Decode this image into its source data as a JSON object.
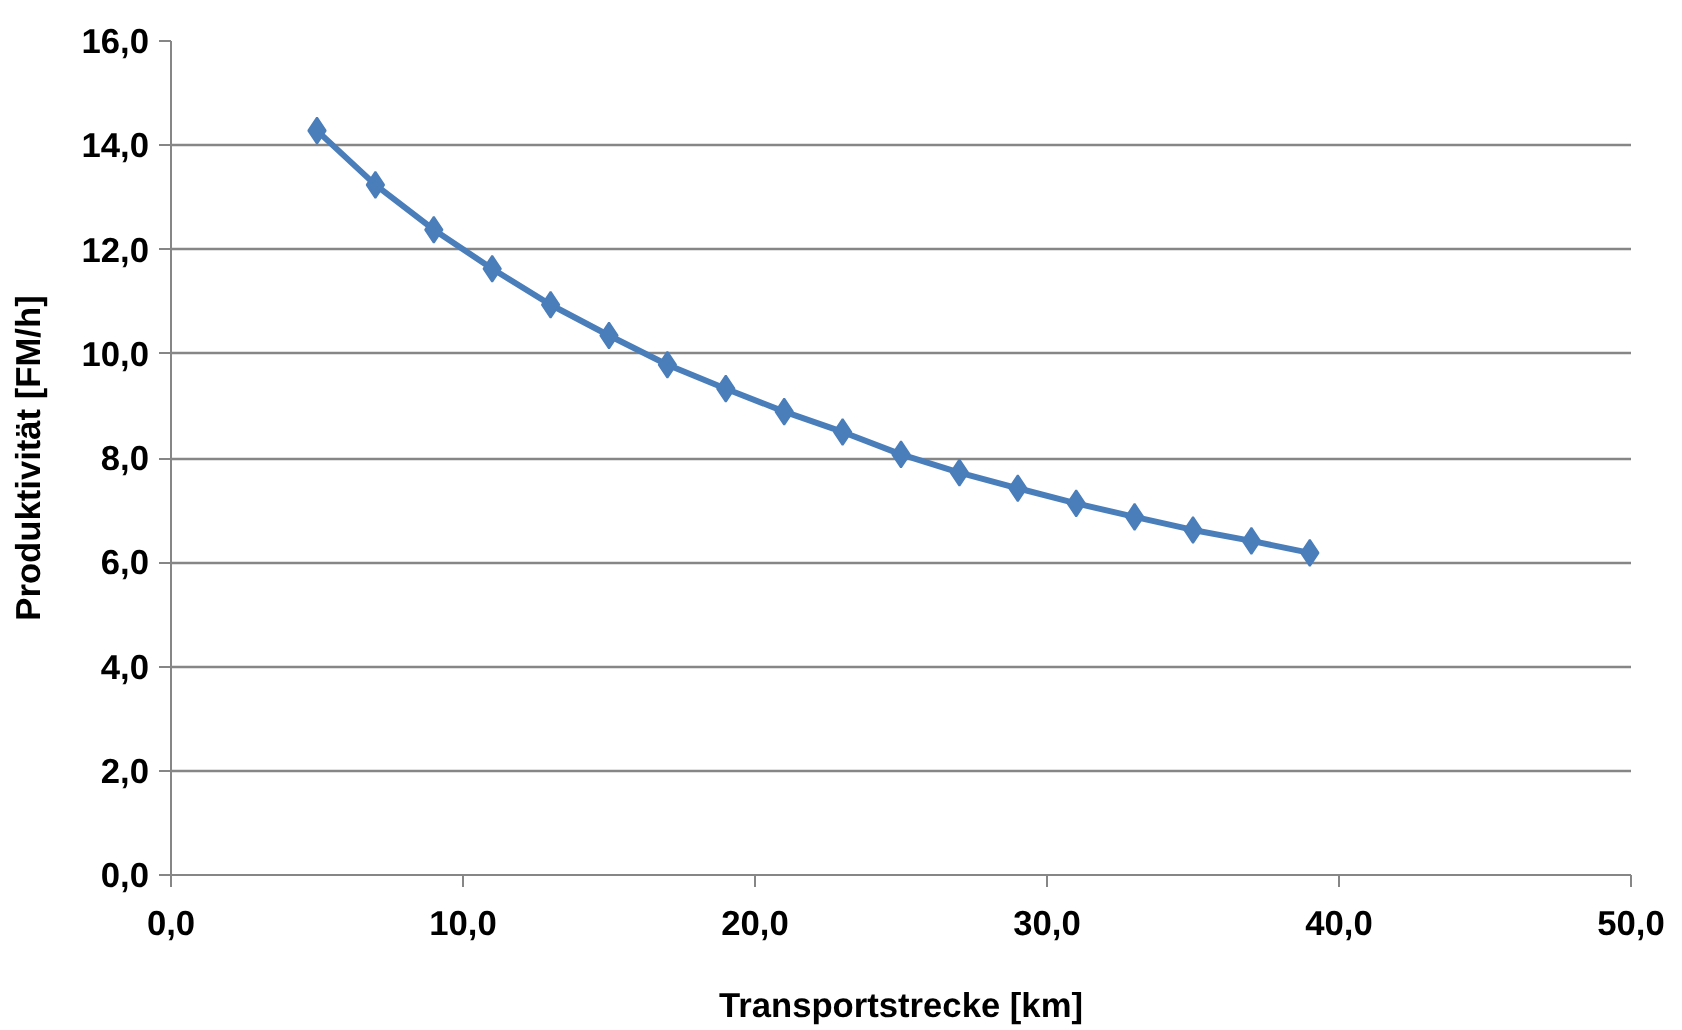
{
  "chart_data": {
    "type": "line",
    "xlabel": "Transportstrecke [km]",
    "ylabel": "Produktivität [FM/h]",
    "x": [
      5,
      7,
      9,
      11,
      13,
      15,
      17,
      19,
      21,
      23,
      25,
      27,
      29,
      31,
      33,
      35,
      37,
      39
    ],
    "series": [
      {
        "color": "#4a7ebb",
        "values": [
          14.28,
          13.24,
          12.38,
          11.63,
          10.94,
          10.35,
          9.79,
          9.33,
          8.89,
          8.5,
          8.07,
          7.72,
          7.42,
          7.13,
          6.87,
          6.62,
          6.41,
          6.18
        ]
      }
    ],
    "xlim": [
      0,
      50
    ],
    "ylim": [
      0,
      16
    ],
    "xticks": [
      {
        "value": 0,
        "label": "0,0"
      },
      {
        "value": 10,
        "label": "10,0"
      },
      {
        "value": 20,
        "label": "20,0"
      },
      {
        "value": 30,
        "label": "30,0"
      },
      {
        "value": 40,
        "label": "40,0"
      },
      {
        "value": 50,
        "label": "50,0"
      }
    ],
    "yticks": [
      {
        "value": 0,
        "label": "0,0"
      },
      {
        "value": 2,
        "label": "2,0"
      },
      {
        "value": 4,
        "label": "4,0"
      },
      {
        "value": 6,
        "label": "6,0"
      },
      {
        "value": 8,
        "label": "8,0"
      },
      {
        "value": 10,
        "label": "10,0"
      },
      {
        "value": 12,
        "label": "12,0"
      },
      {
        "value": 14,
        "label": "14,0"
      },
      {
        "value": 16,
        "label": "16,0"
      }
    ],
    "grid": "y",
    "marker": "diamond",
    "line_style": "solid"
  }
}
